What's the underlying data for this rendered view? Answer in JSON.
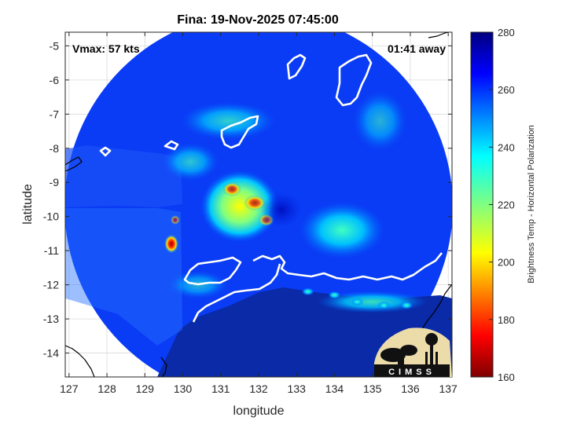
{
  "chart_data": {
    "type": "heatmap",
    "title": "Fina: 19-Nov-2025 07:45:00",
    "xlabel": "longitude",
    "ylabel": "latitude",
    "xlim": [
      126.9,
      137.1
    ],
    "ylim": [
      -14.7,
      -4.6
    ],
    "xticks": [
      "127",
      "128",
      "129",
      "130",
      "131",
      "132",
      "133",
      "134",
      "135",
      "136",
      "137"
    ],
    "yticks": [
      "-5",
      "-6",
      "-7",
      "-8",
      "-9",
      "-10",
      "-11",
      "-12",
      "-13",
      "-14"
    ],
    "annotations": {
      "vmax": "Vmax: 57 kts",
      "time_away": "01:41 away"
    },
    "colorbar": {
      "label": "Brightness Temp - Horizontal Polarization",
      "range": [
        160,
        280
      ],
      "ticks": [
        "160",
        "180",
        "200",
        "220",
        "240",
        "260",
        "280"
      ],
      "colormap": "jet"
    },
    "storm_center": {
      "lon": 132.6,
      "lat": -9.8
    },
    "swath_center": {
      "lon": 132.0,
      "lat": -9.7
    },
    "warm_regions": [
      {
        "lon": 131.6,
        "lat": -9.4,
        "value": 200
      },
      {
        "lon": 129.7,
        "lat": -10.8,
        "value": 175
      },
      {
        "lon": 134.4,
        "lat": -10.4,
        "value": 232
      },
      {
        "lon": 135.2,
        "lat": -12.5,
        "value": 238
      }
    ],
    "logo_text": "CIMSS"
  }
}
